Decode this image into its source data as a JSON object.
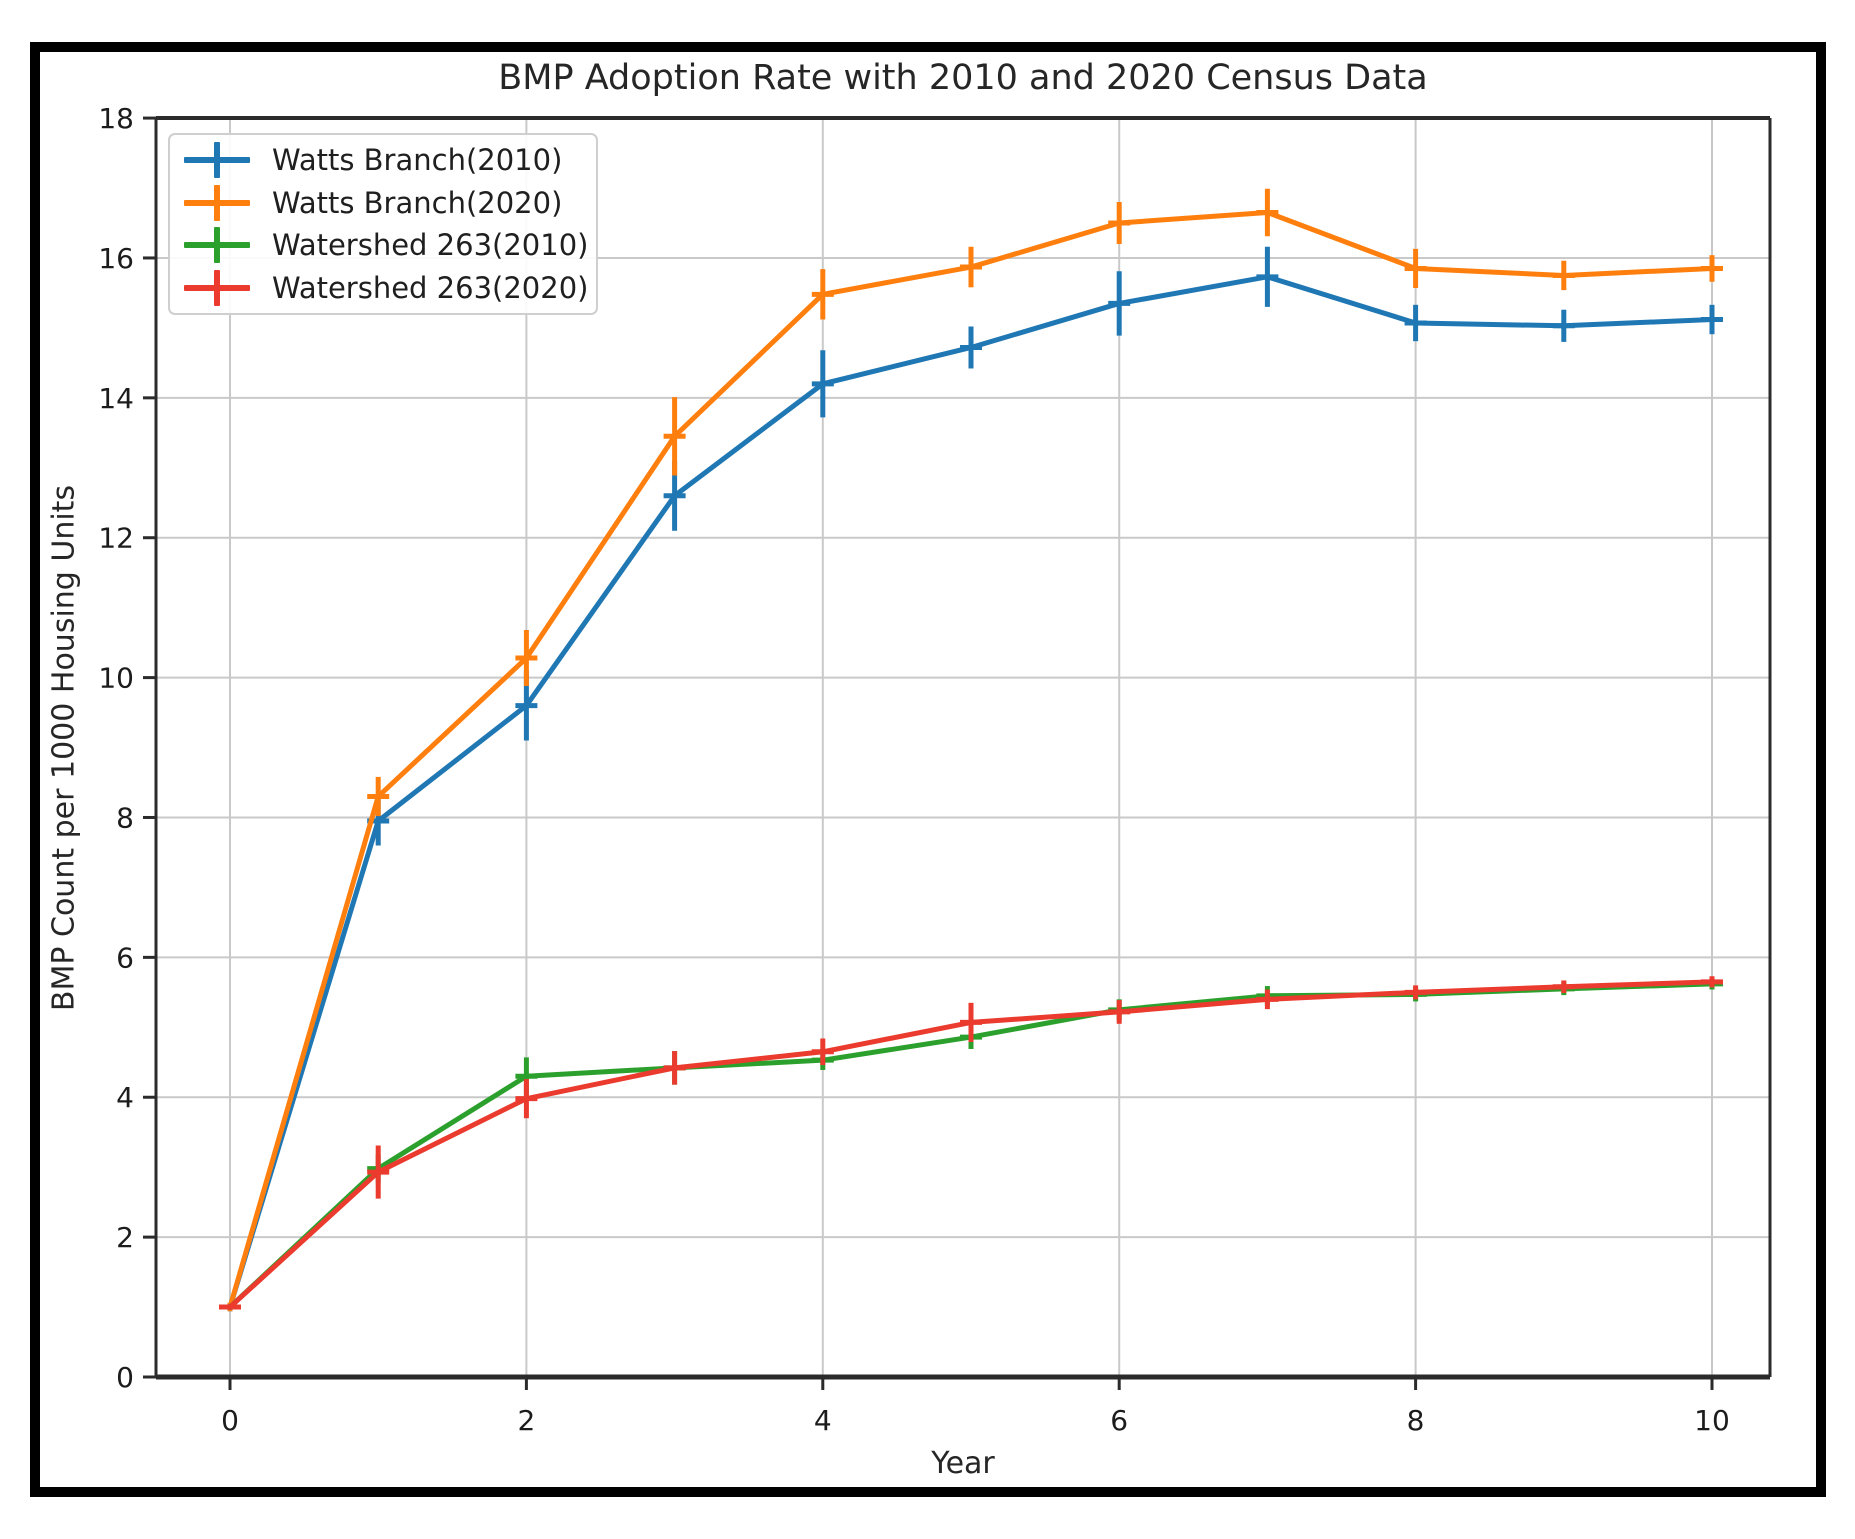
{
  "window": {
    "background": "#ffffff",
    "frame_border_color": "#000000"
  },
  "chart_data": {
    "type": "line",
    "style": "errorbar-line",
    "title": "BMP Adoption Rate with 2010 and 2020 Census Data",
    "xlabel": "Year",
    "ylabel": "BMP Count per 1000 Housing Units",
    "x": [
      0,
      1,
      2,
      3,
      4,
      5,
      6,
      7,
      8,
      9,
      10
    ],
    "x_ticks": [
      0,
      2,
      4,
      6,
      8,
      10
    ],
    "y_ticks": [
      0,
      2,
      4,
      6,
      8,
      10,
      12,
      14,
      16,
      18
    ],
    "xlim": [
      -0.5,
      10.4
    ],
    "ylim": [
      0,
      18
    ],
    "grid": true,
    "grid_color": "#c9c9c9",
    "spine_color": "#2b2b2b",
    "tick_label_color": "#1c1c1c",
    "legend_position": "upper left",
    "series": [
      {
        "name": "Watts Branch(2010)",
        "color": "#1f77b4",
        "values": [
          1.0,
          7.95,
          9.6,
          12.6,
          14.2,
          14.72,
          15.35,
          15.73,
          15.07,
          15.03,
          15.12
        ],
        "errors": [
          0.06,
          0.35,
          0.5,
          0.5,
          0.48,
          0.3,
          0.46,
          0.43,
          0.26,
          0.23,
          0.21
        ]
      },
      {
        "name": "Watts Branch(2020)",
        "color": "#ff7f0e",
        "values": [
          1.0,
          8.3,
          10.28,
          13.45,
          15.48,
          15.87,
          16.5,
          16.65,
          15.85,
          15.75,
          15.85
        ],
        "errors": [
          0.06,
          0.28,
          0.4,
          0.56,
          0.36,
          0.29,
          0.3,
          0.34,
          0.28,
          0.21,
          0.19
        ]
      },
      {
        "name": "Watershed 263(2010)",
        "color": "#2ca02c",
        "values": [
          1.0,
          2.98,
          4.3,
          4.42,
          4.53,
          4.86,
          5.25,
          5.45,
          5.47,
          5.55,
          5.62
        ],
        "errors": [
          0.04,
          0.2,
          0.27,
          0.24,
          0.14,
          0.17,
          0.15,
          0.14,
          0.1,
          0.09,
          0.08
        ]
      },
      {
        "name": "Watershed 263(2020)",
        "color": "#ea3b2e",
        "values": [
          1.0,
          2.93,
          3.98,
          4.42,
          4.65,
          5.07,
          5.22,
          5.4,
          5.5,
          5.58,
          5.65
        ],
        "errors": [
          0.04,
          0.38,
          0.28,
          0.24,
          0.19,
          0.28,
          0.17,
          0.14,
          0.1,
          0.09,
          0.08
        ]
      }
    ]
  }
}
